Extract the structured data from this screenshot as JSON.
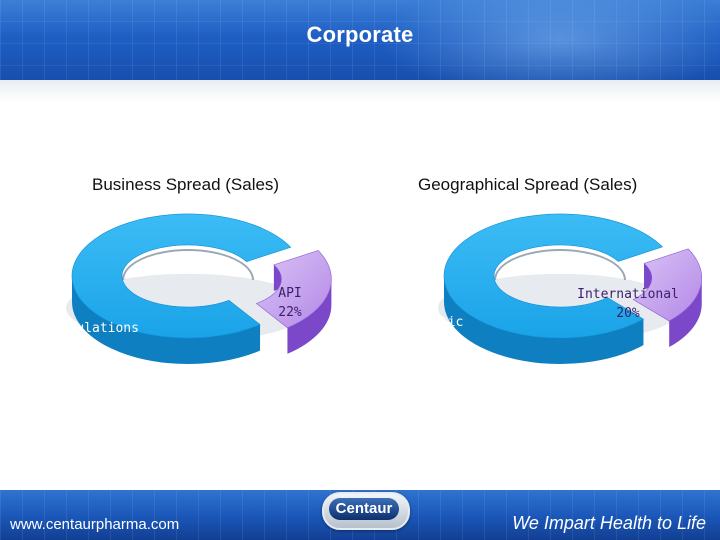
{
  "header": {
    "title": "Corporate"
  },
  "footer": {
    "website": "www.centaurpharma.com",
    "logo_text": "Centaur",
    "tagline": "We Impart Health to Life"
  },
  "colors": {
    "main_slice": "#1aa3e8",
    "main_slice_side": "#0e7fc0",
    "small_slice": "#b488e6",
    "small_slice_side": "#7a48c8",
    "header": "#1f5fc4"
  },
  "chart_data": [
    {
      "type": "pie",
      "title": "Business Spread (Sales)",
      "slices": [
        {
          "label": "Formulations",
          "value": 78,
          "value_label": "78%"
        },
        {
          "label": "API",
          "value": 22,
          "value_label": "22%"
        }
      ]
    },
    {
      "type": "pie",
      "title": "Geographical Spread (Sales)",
      "slices": [
        {
          "label": "Domestic",
          "value": 80,
          "value_label": "80%"
        },
        {
          "label": "International",
          "value": 20,
          "value_label": "20%"
        }
      ]
    }
  ]
}
